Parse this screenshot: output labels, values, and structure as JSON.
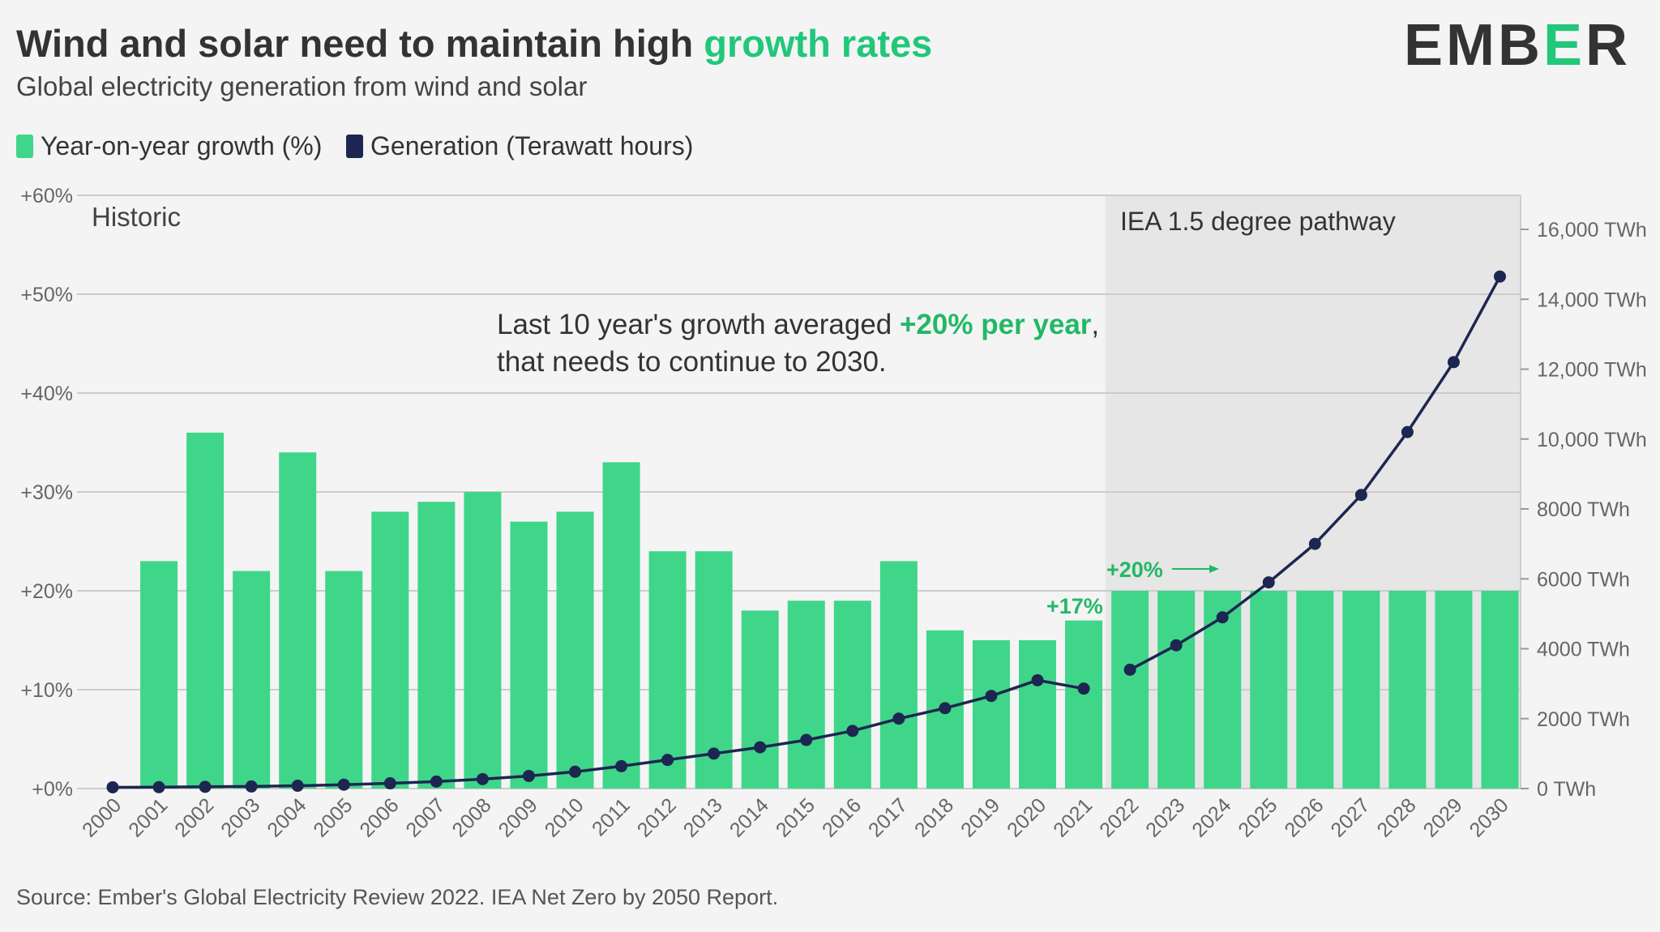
{
  "title": {
    "main": "Wind and solar need to maintain high ",
    "highlight": "growth rates"
  },
  "subtitle": "Global electricity generation from wind and solar",
  "logo": {
    "text_left": "EMB",
    "text_mid": "E",
    "text_right": "R"
  },
  "legend": {
    "growth_label": "Year-on-year growth (%)",
    "generation_label": "Generation (Terawatt hours)"
  },
  "annotations": {
    "historic": "Historic",
    "pathway": "IEA 1.5 degree pathway",
    "note_line1_prefix": "Last 10 year's growth averaged ",
    "note_line1_highlight": "+20% per year",
    "note_line1_suffix": ",",
    "note_line2": "that needs to continue to 2030.",
    "label_2021": "+17%",
    "label_projection": "+20%"
  },
  "source": "Source: Ember's Global Electricity Review 2022. IEA Net Zero by 2050 Report.",
  "colors": {
    "green": "#3fd68a",
    "green_text": "#22b866",
    "navy": "#1d2650",
    "grid": "#cccccc",
    "shade": "#e6e6e6",
    "text": "#333333",
    "axis_text": "#666666",
    "background": "#f4f4f4"
  },
  "chart_data": {
    "type": "bar",
    "categories": [
      "2000",
      "2001",
      "2002",
      "2003",
      "2004",
      "2005",
      "2006",
      "2007",
      "2008",
      "2009",
      "2010",
      "2011",
      "2012",
      "2013",
      "2014",
      "2015",
      "2016",
      "2017",
      "2018",
      "2019",
      "2020",
      "2021",
      "2022",
      "2023",
      "2024",
      "2025",
      "2026",
      "2027",
      "2028",
      "2029",
      "2030"
    ],
    "series": [
      {
        "name": "Year-on-year growth (%)",
        "type": "bar",
        "axis": "left",
        "values": [
          0,
          23,
          36,
          22,
          34,
          22,
          28,
          29,
          30,
          27,
          28,
          33,
          24,
          24,
          18,
          19,
          19,
          23,
          16,
          15,
          15,
          17,
          20,
          20,
          20,
          20,
          20,
          20,
          20,
          20,
          20
        ]
      },
      {
        "name": "Generation (Terawatt hours)",
        "type": "line",
        "axis": "right",
        "values": [
          35,
          40,
          50,
          60,
          80,
          110,
          150,
          200,
          270,
          360,
          480,
          640,
          820,
          1000,
          1180,
          1390,
          1650,
          2000,
          2300,
          2650,
          3100,
          2860,
          3400,
          4100,
          4900,
          5900,
          7000,
          8400,
          10200,
          12200,
          14650
        ]
      }
    ],
    "left_axis": {
      "ticks": [
        0,
        10,
        20,
        30,
        40,
        50,
        60
      ],
      "tick_labels": [
        "+0%",
        "+10%",
        "+20%",
        "+30%",
        "+40%",
        "+50%",
        "+60%"
      ],
      "ylim": [
        0,
        60
      ]
    },
    "right_axis": {
      "ticks": [
        0,
        2000,
        4000,
        6000,
        8000,
        10000,
        12000,
        14000,
        16000
      ],
      "tick_labels": [
        "0 TWh",
        "2000 TWh",
        "4000 TWh",
        "6000 TWh",
        "8000 TWh",
        "10,000 TWh",
        "12,000 TWh",
        "14,000 TWh",
        "16,000 TWh"
      ],
      "ylim": [
        0,
        17000
      ]
    },
    "projection_start": "2022",
    "grid": true,
    "legend_position": "top-left"
  }
}
